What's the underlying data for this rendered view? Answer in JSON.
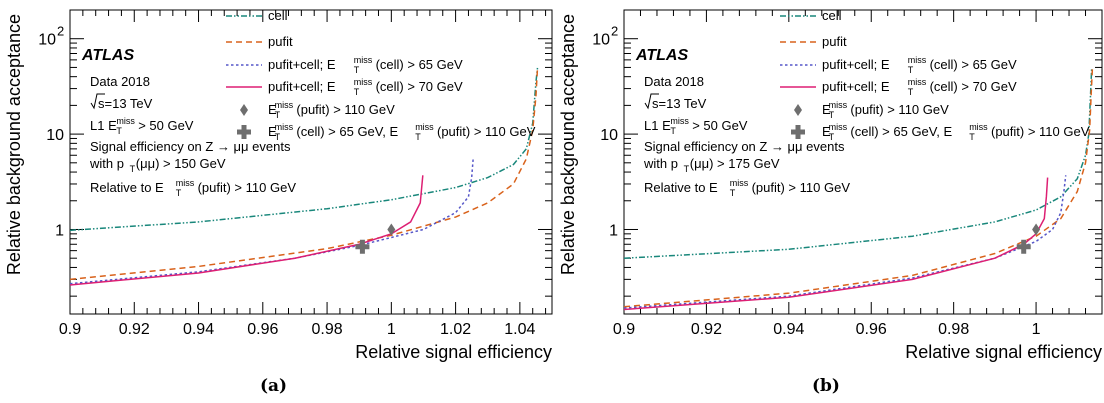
{
  "captions": [
    "(a)",
    "(b)"
  ],
  "legend": [
    {
      "id": "cell",
      "label": "cell",
      "color": "#19877b",
      "dash": "6 2 1.5 2 1.5 2"
    },
    {
      "id": "pufit",
      "label": "pufit",
      "color": "#d9621b",
      "dash": "6 4"
    },
    {
      "id": "pc65",
      "pre": "pufit+cell; E",
      "sup": "miss",
      "sub": "T",
      "post": "(cell) > 65 GeV",
      "color": "#5556c8",
      "dash": "2.5 2.5"
    },
    {
      "id": "pc70",
      "pre": "pufit+cell; E",
      "sup": "miss",
      "sub": "T",
      "post": "(cell) > 70 GeV",
      "color": "#dd1f73",
      "dash": ""
    },
    {
      "id": "diamond",
      "pre": "E",
      "sup": "miss",
      "sub": "T",
      "post": "(pufit) > 110 GeV",
      "color": "#6e6e6e"
    },
    {
      "id": "cross",
      "pre": "E",
      "sup": "miss",
      "sub": "T",
      "post": "(cell) > 65 GeV, E",
      "sup2": "miss",
      "sub2": "T",
      "post2": "(pufit) > 110 GeV",
      "color": "#6e6e6e"
    }
  ],
  "chart_data": [
    {
      "type": "line",
      "title": "ATLAS",
      "xlabel": "Relative signal efficiency",
      "ylabel": "Relative background acceptance",
      "xlim": [
        0.9,
        1.05
      ],
      "ylim": [
        0.13,
        200
      ],
      "yscale": "log",
      "xticks": [
        "0.9",
        "0.92",
        "0.94",
        "0.96",
        "0.98",
        "1",
        "1.02",
        "1.04"
      ],
      "yticks": [
        {
          "v": 1,
          "label": "1"
        },
        {
          "v": 10,
          "label": "10"
        },
        {
          "v": 100,
          "label": "10",
          "exp": "2"
        }
      ],
      "annotations": {
        "data": "Data 2018",
        "sqrts": "s=13 TeV",
        "l1_pre": "L1 E",
        "l1_sup": "miss",
        "l1_sub": "T",
        "l1_post": " > 50 GeV",
        "signal": "Signal efficiency on Z → μμ events",
        "pt_pre": "with p",
        "pt_sub": "T",
        "pt_post": "(μμ) > 150 GeV",
        "rel_pre": "Relative to E",
        "rel_sup": "miss",
        "rel_sub": "T",
        "rel_post": " (pufit) > 110 GeV"
      },
      "series": [
        {
          "name": "cell",
          "points": [
            [
              0.9,
              0.98
            ],
            [
              0.94,
              1.2
            ],
            [
              0.98,
              1.65
            ],
            [
              1.0,
              2.05
            ],
            [
              1.02,
              2.75
            ],
            [
              1.03,
              3.5
            ],
            [
              1.038,
              4.8
            ],
            [
              1.042,
              7
            ],
            [
              1.044,
              13
            ],
            [
              1.045,
              35
            ],
            [
              1.0455,
              50
            ]
          ]
        },
        {
          "name": "pufit",
          "points": [
            [
              0.9,
              0.3
            ],
            [
              0.94,
              0.41
            ],
            [
              0.98,
              0.63
            ],
            [
              1.0,
              0.87
            ],
            [
              1.02,
              1.35
            ],
            [
              1.03,
              1.9
            ],
            [
              1.038,
              3.0
            ],
            [
              1.042,
              5.5
            ],
            [
              1.044,
              11
            ],
            [
              1.045,
              25
            ],
            [
              1.0455,
              50
            ]
          ]
        },
        {
          "name": "pufit+cell; E_T^miss(cell) > 65 GeV",
          "points": [
            [
              0.9,
              0.27
            ],
            [
              0.94,
              0.36
            ],
            [
              0.97,
              0.5
            ],
            [
              0.99,
              0.68
            ],
            [
              1.01,
              1.0
            ],
            [
              1.02,
              1.5
            ],
            [
              1.024,
              2.2
            ],
            [
              1.025,
              3.5
            ],
            [
              1.0255,
              5.7
            ]
          ]
        },
        {
          "name": "pufit+cell; E_T^miss(cell) > 70 GeV",
          "points": [
            [
              0.9,
              0.262
            ],
            [
              0.94,
              0.35
            ],
            [
              0.97,
              0.5
            ],
            [
              0.99,
              0.7
            ],
            [
              1.0,
              0.9
            ],
            [
              1.006,
              1.2
            ],
            [
              1.009,
              1.9
            ],
            [
              1.0098,
              3.7
            ]
          ]
        }
      ],
      "markers": [
        {
          "name": "E_T^miss(pufit) > 110 GeV",
          "shape": "diamond",
          "x": 1.0,
          "y": 1.0
        },
        {
          "name": "E_T^miss(cell) > 65 GeV, E_T^miss(pufit) > 110 GeV",
          "shape": "cross",
          "x": 0.991,
          "y": 0.66
        }
      ]
    },
    {
      "type": "line",
      "title": "ATLAS",
      "xlabel": "Relative signal efficiency",
      "ylabel": "Relative background acceptance",
      "xlim": [
        0.9,
        1.016
      ],
      "ylim": [
        0.13,
        200
      ],
      "yscale": "log",
      "xticks": [
        "0.9",
        "0.92",
        "0.94",
        "0.96",
        "0.98",
        "1"
      ],
      "yticks": [
        {
          "v": 1,
          "label": "1"
        },
        {
          "v": 10,
          "label": "10"
        },
        {
          "v": 100,
          "label": "10",
          "exp": "2"
        }
      ],
      "annotations": {
        "data": "Data 2018",
        "sqrts": "s=13 TeV",
        "l1_pre": "L1 E",
        "l1_sup": "miss",
        "l1_sub": "T",
        "l1_post": " > 50 GeV",
        "signal": "Signal efficiency on Z → μμ events",
        "pt_pre": "with p",
        "pt_sub": "T",
        "pt_post": "(μμ) > 175 GeV",
        "rel_pre": "Relative to E",
        "rel_sup": "miss",
        "rel_sub": "T",
        "rel_post": " (pufit) > 110 GeV"
      },
      "series": [
        {
          "name": "cell",
          "points": [
            [
              0.9,
              0.5
            ],
            [
              0.94,
              0.62
            ],
            [
              0.97,
              0.85
            ],
            [
              0.99,
              1.2
            ],
            [
              1.0,
              1.6
            ],
            [
              1.006,
              2.2
            ],
            [
              1.01,
              3.4
            ],
            [
              1.012,
              6
            ],
            [
              1.0128,
              10
            ],
            [
              1.0132,
              25
            ],
            [
              1.0135,
              50
            ]
          ]
        },
        {
          "name": "pufit",
          "points": [
            [
              0.9,
              0.155
            ],
            [
              0.94,
              0.215
            ],
            [
              0.97,
              0.33
            ],
            [
              0.99,
              0.56
            ],
            [
              1.0,
              0.85
            ],
            [
              1.006,
              1.3
            ],
            [
              1.01,
              2.5
            ],
            [
              1.012,
              5
            ],
            [
              1.013,
              11
            ],
            [
              1.0134,
              28
            ],
            [
              1.0137,
              52
            ]
          ]
        },
        {
          "name": "pufit+cell; E_T^miss(cell) > 65 GeV",
          "points": [
            [
              0.9,
              0.15
            ],
            [
              0.94,
              0.2
            ],
            [
              0.97,
              0.31
            ],
            [
              0.99,
              0.5
            ],
            [
              1.0,
              0.75
            ],
            [
              1.004,
              1.0
            ],
            [
              1.006,
              1.5
            ],
            [
              1.0068,
              2.6
            ],
            [
              1.0072,
              3.7
            ]
          ]
        },
        {
          "name": "pufit+cell; E_T^miss(cell) > 70 GeV",
          "points": [
            [
              0.9,
              0.145
            ],
            [
              0.94,
              0.195
            ],
            [
              0.97,
              0.3
            ],
            [
              0.99,
              0.5
            ],
            [
              0.997,
              0.7
            ],
            [
              1.0,
              0.9
            ],
            [
              1.002,
              1.3
            ],
            [
              1.0025,
              2.2
            ],
            [
              1.0028,
              3.5
            ]
          ]
        }
      ],
      "markers": [
        {
          "name": "E_T^miss(pufit) > 110 GeV",
          "shape": "diamond",
          "x": 1.0,
          "y": 1.0
        },
        {
          "name": "E_T^miss(cell) > 65 GeV, E_T^miss(pufit) > 110 GeV",
          "shape": "cross",
          "x": 0.997,
          "y": 0.66
        }
      ]
    }
  ]
}
